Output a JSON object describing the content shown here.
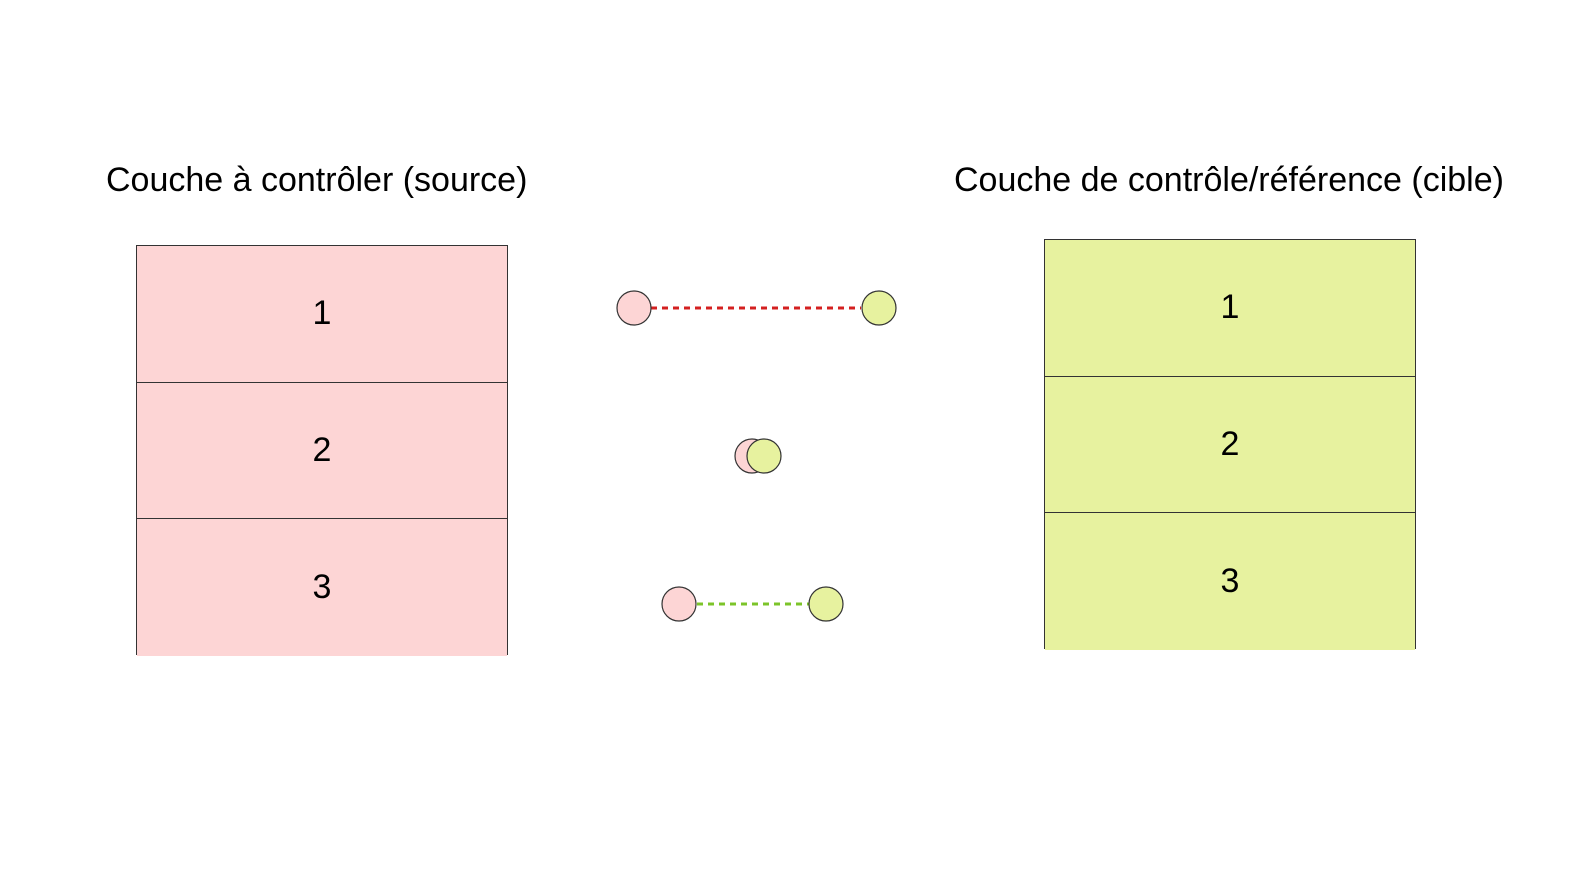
{
  "colors": {
    "source_fill": "#fdd5d5",
    "target_fill": "#e7f29f",
    "link_bad": "#d42020",
    "link_good": "#7cc42a",
    "stroke": "#333333"
  },
  "source_layer": {
    "title": "Couche à contrôler (source)",
    "cells": [
      "1",
      "2",
      "3"
    ]
  },
  "target_layer": {
    "title": "Couche de contrôle/référence (cible)",
    "cells": [
      "1",
      "2",
      "3"
    ]
  },
  "links": [
    {
      "name": "link-large-offset",
      "status": "bad"
    },
    {
      "name": "link-overlap",
      "status": "match"
    },
    {
      "name": "link-small-offset",
      "status": "good"
    }
  ]
}
